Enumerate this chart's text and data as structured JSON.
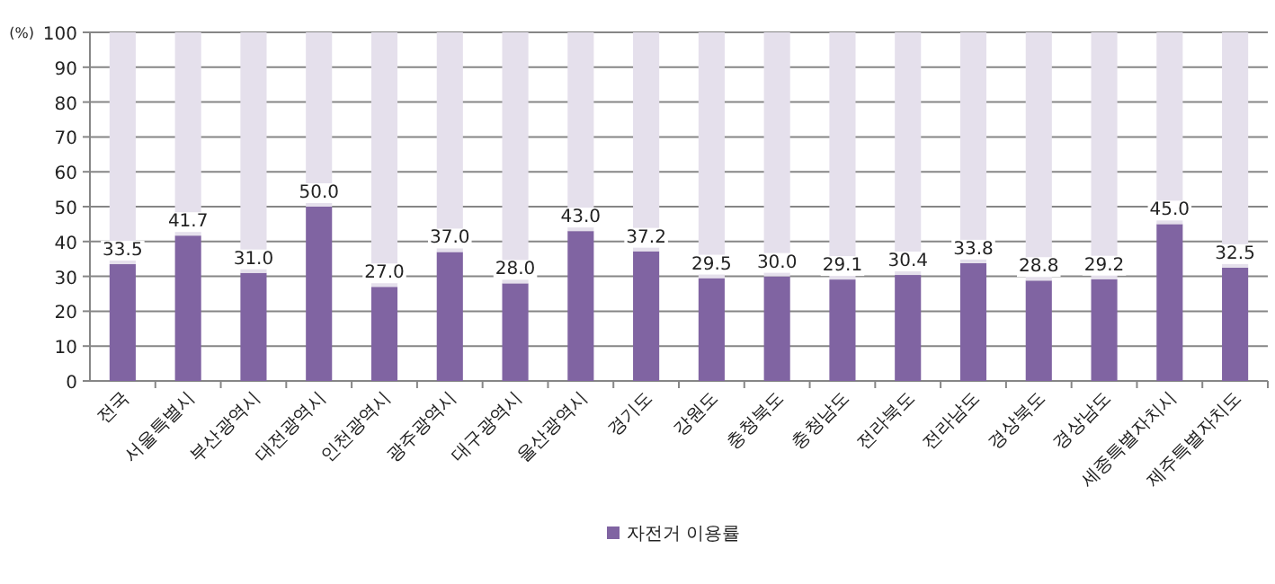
{
  "chart_data": {
    "type": "bar",
    "stacked": true,
    "ylabel": "(%)",
    "categories": [
      "전국",
      "서울특별시",
      "부산광역시",
      "대전광역시",
      "인천광역시",
      "광주광역시",
      "대구광역시",
      "울산광역시",
      "경기도",
      "강원도",
      "충청북도",
      "충청남도",
      "전라북도",
      "전라남도",
      "경상북도",
      "경상남도",
      "세종특별자치시",
      "제주특별자치도"
    ],
    "series": [
      {
        "name": "자전거 이용률",
        "color": "#8064a2",
        "values": [
          33.5,
          41.7,
          31.0,
          50.0,
          27.0,
          37.0,
          28.0,
          43.0,
          37.2,
          29.5,
          30.0,
          29.1,
          30.4,
          33.8,
          28.8,
          29.2,
          45.0,
          32.5
        ],
        "value_labels": [
          "33.5",
          "41.7",
          "31.0",
          "50.0",
          "27.0",
          "37.0",
          "28.0",
          "43.0",
          "37.2",
          "29.5",
          "30.0",
          "29.1",
          "30.4",
          "33.8",
          "28.8",
          "29.2",
          "45.0",
          "32.5"
        ]
      },
      {
        "color": "#e5e0ec",
        "values": [
          66.5,
          58.3,
          69.0,
          50.0,
          73.0,
          63.0,
          72.0,
          57.0,
          62.8,
          70.5,
          70.0,
          70.9,
          69.6,
          66.2,
          71.2,
          70.8,
          55.0,
          67.5
        ]
      }
    ],
    "ylim": [
      0,
      100
    ],
    "yticks": [
      0,
      10,
      20,
      30,
      40,
      50,
      60,
      70,
      80,
      90,
      100
    ],
    "grid": "y",
    "legend": "bottom"
  }
}
